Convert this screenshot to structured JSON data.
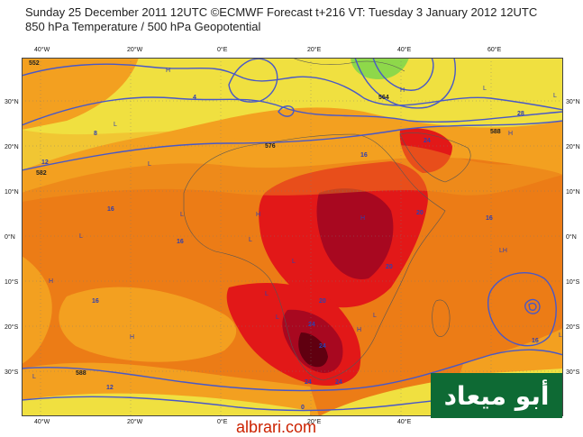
{
  "header": {
    "line1": "Sunday 25 December 2011 12UTC ©ECMWF Forecast t+216 VT: Tuesday 3 January 2012 12UTC",
    "line2": "850 hPa Temperature / 500 hPa Geopotential"
  },
  "axes": {
    "lon_labels": [
      "40°W",
      "20°W",
      "0°E",
      "20°E",
      "40°E",
      "60°E"
    ],
    "lat_labels": [
      "30°N",
      "20°N",
      "10°N",
      "0°N",
      "10°S",
      "20°S",
      "30°S"
    ]
  },
  "map": {
    "colors": {
      "cool_yellow": "#f0e040",
      "light_orange": "#f3a020",
      "orange": "#ec7c16",
      "red_orange": "#e8401a",
      "red": "#e21818",
      "dark_red": "#a80820",
      "darkest": "#600010",
      "green": "#8ed84a",
      "contour": "#4858c8"
    },
    "contour_labels": [
      "552",
      "582",
      "576",
      "564",
      "588",
      "588"
    ],
    "temperature_labels": [
      "8",
      "4",
      "12",
      "16",
      "16",
      "16",
      "16",
      "20",
      "20",
      "20",
      "24",
      "24",
      "24",
      "24",
      "24",
      "28",
      "16",
      "12",
      "16",
      "0"
    ],
    "pressure_markers": [
      "H",
      "L",
      "H",
      "L",
      "L",
      "L",
      "H",
      "L",
      "L",
      "H",
      "H",
      "L",
      "L",
      "L",
      "H",
      "L",
      "L",
      "H",
      "H",
      "LH",
      "L",
      "L"
    ]
  },
  "logo": {
    "text": "أبو ميعاد"
  },
  "watermark": {
    "text": "albrari.com"
  }
}
